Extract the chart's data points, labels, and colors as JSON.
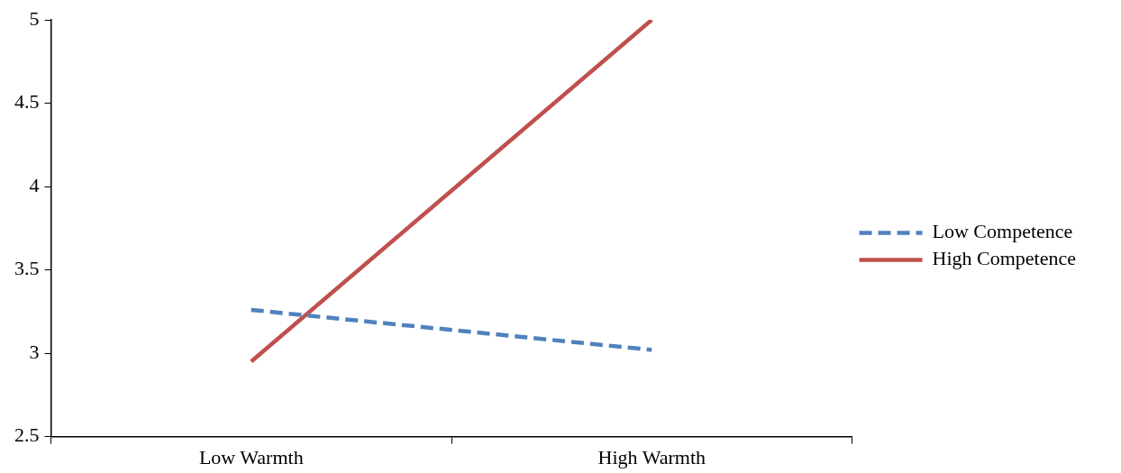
{
  "chart_data": {
    "type": "line",
    "categories": [
      "Low Warmth",
      "High Warmth"
    ],
    "series": [
      {
        "name": "Low Competence",
        "color": "#4f81bd",
        "values": [
          3.26,
          3.02
        ],
        "line_style": "dashed"
      },
      {
        "name": "High Competence",
        "color": "#c0504d",
        "values": [
          2.95,
          5
        ],
        "line_style": "solid"
      }
    ],
    "ylim": [
      2.5,
      5
    ],
    "yticks": [
      2.5,
      3,
      3.5,
      4,
      4.5,
      5
    ],
    "grid": false,
    "legend": "right",
    "marker": "none"
  }
}
